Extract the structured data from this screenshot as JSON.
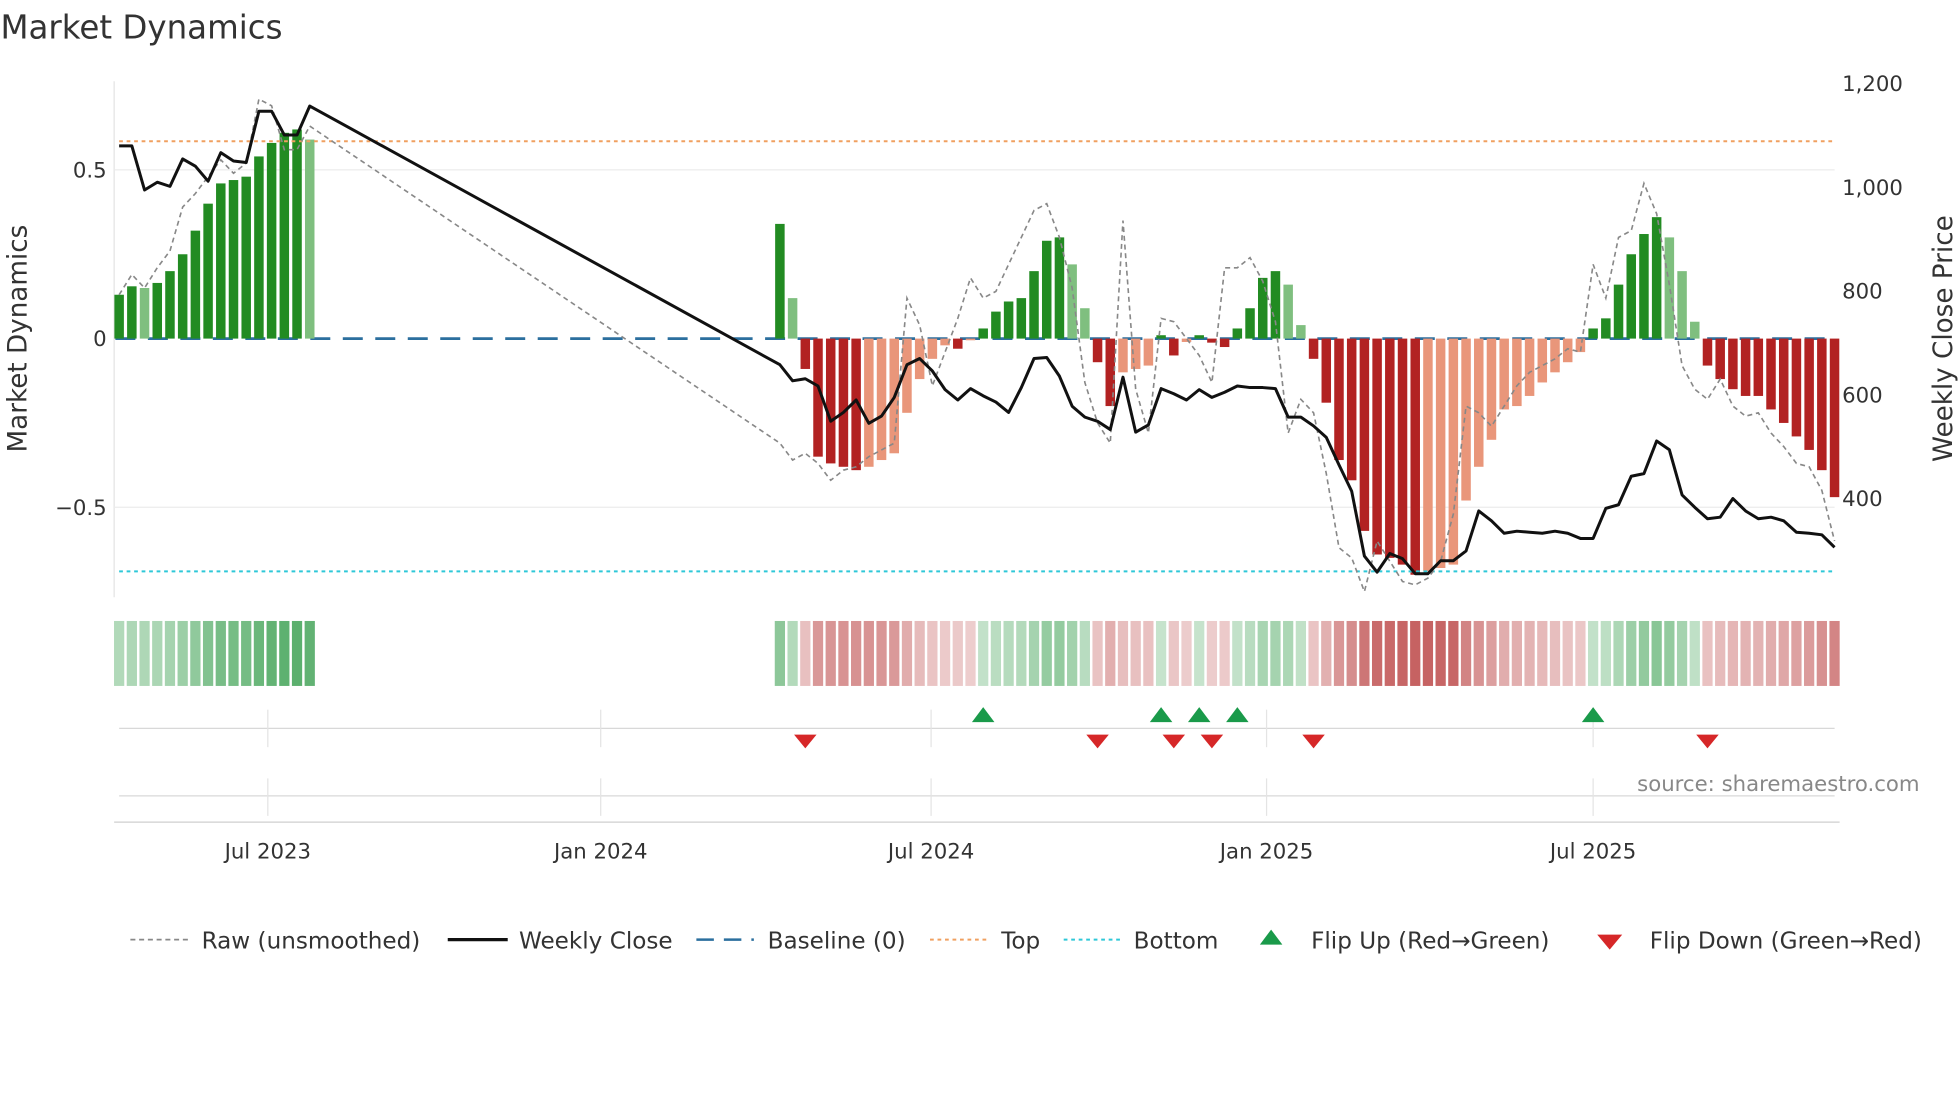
{
  "chart_data": {
    "type": "bar",
    "title": "Market Dynamics",
    "ylabel": "Market Dynamics",
    "y2label": "Weekly Close Price",
    "ylim": [
      -0.78,
      0.76
    ],
    "y2lim": [
      180,
      1200
    ],
    "yticks": [
      {
        "v": 0.5,
        "label": "0.5"
      },
      {
        "v": 0,
        "label": "0"
      },
      {
        "v": -0.5,
        "label": "−0.5"
      }
    ],
    "y2ticks": [
      {
        "v": 1200,
        "label": "1,200"
      },
      {
        "v": 1000,
        "label": "1,000"
      },
      {
        "v": 800,
        "label": "800"
      },
      {
        "v": 600,
        "label": "600"
      },
      {
        "v": 400,
        "label": "400"
      }
    ],
    "xunit": "weeks since first bar",
    "xticks": [
      {
        "week": 11.7,
        "label": "Jul 2023"
      },
      {
        "week": 37.9,
        "label": "Jan 2024"
      },
      {
        "week": 63.9,
        "label": "Jul 2024"
      },
      {
        "week": 90.3,
        "label": "Jan 2025"
      },
      {
        "week": 116.0,
        "label": "Jul 2025"
      }
    ],
    "top_level": 0.585,
    "bottom_level": -0.69,
    "segments": [
      {
        "start_week": 0,
        "values": [
          0.13,
          0.155,
          0.15,
          0.165,
          0.2,
          0.25,
          0.32,
          0.4,
          0.46,
          0.47,
          0.48,
          0.54,
          0.58,
          0.61,
          0.62,
          0.59
        ],
        "raw": [
          0.13,
          0.19,
          0.15,
          0.21,
          0.26,
          0.39,
          0.43,
          0.48,
          0.53,
          0.49,
          0.52,
          0.71,
          0.69,
          0.56,
          0.56,
          0.63
        ],
        "close": [
          1080,
          1080,
          995,
          1010,
          1002,
          1055,
          1041,
          1012,
          1067,
          1051,
          1048,
          1147,
          1147,
          1101,
          1101,
          1157
        ]
      },
      {
        "start_week": 52,
        "values": [
          0.34,
          0.12,
          -0.09,
          -0.35,
          -0.37,
          -0.38,
          -0.39,
          -0.38,
          -0.36,
          -0.34,
          -0.22,
          -0.12,
          -0.06,
          -0.02,
          -0.03,
          -0.005,
          0.03,
          0.08,
          0.11,
          0.12,
          0.2,
          0.29,
          0.3,
          0.22,
          0.09,
          -0.07,
          -0.2,
          -0.1,
          -0.09,
          -0.08,
          0.01,
          -0.05,
          -0.01,
          0.01,
          -0.012,
          -0.025,
          0.03,
          0.09,
          0.18,
          0.2,
          0.16,
          0.04,
          -0.06,
          -0.19,
          -0.36,
          -0.42,
          -0.57,
          -0.64,
          -0.65,
          -0.67,
          -0.7,
          -0.69,
          -0.68,
          -0.67,
          -0.48,
          -0.38,
          -0.3,
          -0.21,
          -0.2,
          -0.17,
          -0.13,
          -0.1,
          -0.07,
          -0.04,
          0.03,
          0.06,
          0.16,
          0.25,
          0.31,
          0.36,
          0.3,
          0.2,
          0.05,
          -0.08,
          -0.12,
          -0.15,
          -0.17,
          -0.17,
          -0.21,
          -0.25,
          -0.29,
          -0.33,
          -0.39,
          -0.47
        ],
        "raw": [
          -0.31,
          -0.36,
          -0.34,
          -0.37,
          -0.42,
          -0.39,
          -0.38,
          -0.35,
          -0.33,
          -0.31,
          0.12,
          0.04,
          -0.14,
          -0.04,
          0.06,
          0.18,
          0.12,
          0.14,
          0.22,
          0.3,
          0.38,
          0.4,
          0.3,
          0.15,
          -0.13,
          -0.25,
          -0.31,
          0.35,
          -0.15,
          -0.28,
          0.06,
          0.05,
          0.0,
          -0.05,
          -0.13,
          0.21,
          0.21,
          0.24,
          0.17,
          0.05,
          -0.28,
          -0.18,
          -0.22,
          -0.4,
          -0.62,
          -0.65,
          -0.75,
          -0.6,
          -0.66,
          -0.72,
          -0.73,
          -0.71,
          -0.66,
          -0.52,
          -0.2,
          -0.22,
          -0.26,
          -0.2,
          -0.14,
          -0.1,
          -0.08,
          -0.06,
          -0.03,
          -0.04,
          0.22,
          0.12,
          0.3,
          0.32,
          0.46,
          0.37,
          0.16,
          -0.08,
          -0.15,
          -0.18,
          -0.12,
          -0.2,
          -0.23,
          -0.22,
          -0.28,
          -0.32,
          -0.37,
          -0.38,
          -0.45,
          -0.6
        ],
        "close": [
          658,
          627,
          631,
          617,
          549,
          566,
          590,
          545,
          559,
          595,
          658,
          670,
          646,
          610,
          590,
          612,
          598,
          586,
          566,
          614,
          670,
          672,
          636,
          578,
          557,
          549,
          533,
          634,
          528,
          542,
          612,
          602,
          590,
          610,
          595,
          605,
          617,
          614,
          614,
          612,
          557,
          557,
          540,
          518,
          465,
          414,
          289,
          258,
          294,
          284,
          255,
          255,
          280,
          280,
          299,
          376,
          357,
          333,
          337,
          335,
          333,
          337,
          333,
          323,
          323,
          381,
          388,
          443,
          448,
          511,
          494,
          407,
          383,
          361,
          364,
          400,
          376,
          361,
          364,
          357,
          335,
          333,
          330,
          306
        ]
      }
    ],
    "flip_up_weeks": [
      68,
      82,
      85,
      88,
      116
    ],
    "flip_down_weeks": [
      54,
      77,
      83,
      86,
      94,
      125
    ],
    "legend": [
      {
        "label": "Raw (unsmoothed)",
        "style": "dashed-gray"
      },
      {
        "label": "Weekly Close",
        "style": "solid-black"
      },
      {
        "label": "Baseline (0)",
        "style": "dashed-blue"
      },
      {
        "label": "Top",
        "style": "dotted-orange"
      },
      {
        "label": "Bottom",
        "style": "dotted-cyan"
      },
      {
        "label": "Flip Up (Red→Green)",
        "style": "triangle-up-green"
      },
      {
        "label": "Flip Down (Green→Red)",
        "style": "triangle-down-red"
      }
    ],
    "legend_position": "bottom",
    "annotation": "source: sharemaestro.com",
    "colors": {
      "strong_green": "#228b22",
      "weak_green": "#7fbf7f",
      "strong_red": "#b22222",
      "weak_red": "#e9967a",
      "baseline": "#2b6f9e",
      "top": "#f0a060",
      "bottom": "#2ec8d8",
      "flip_up": "#1a9a4a",
      "flip_down": "#d62728"
    }
  }
}
